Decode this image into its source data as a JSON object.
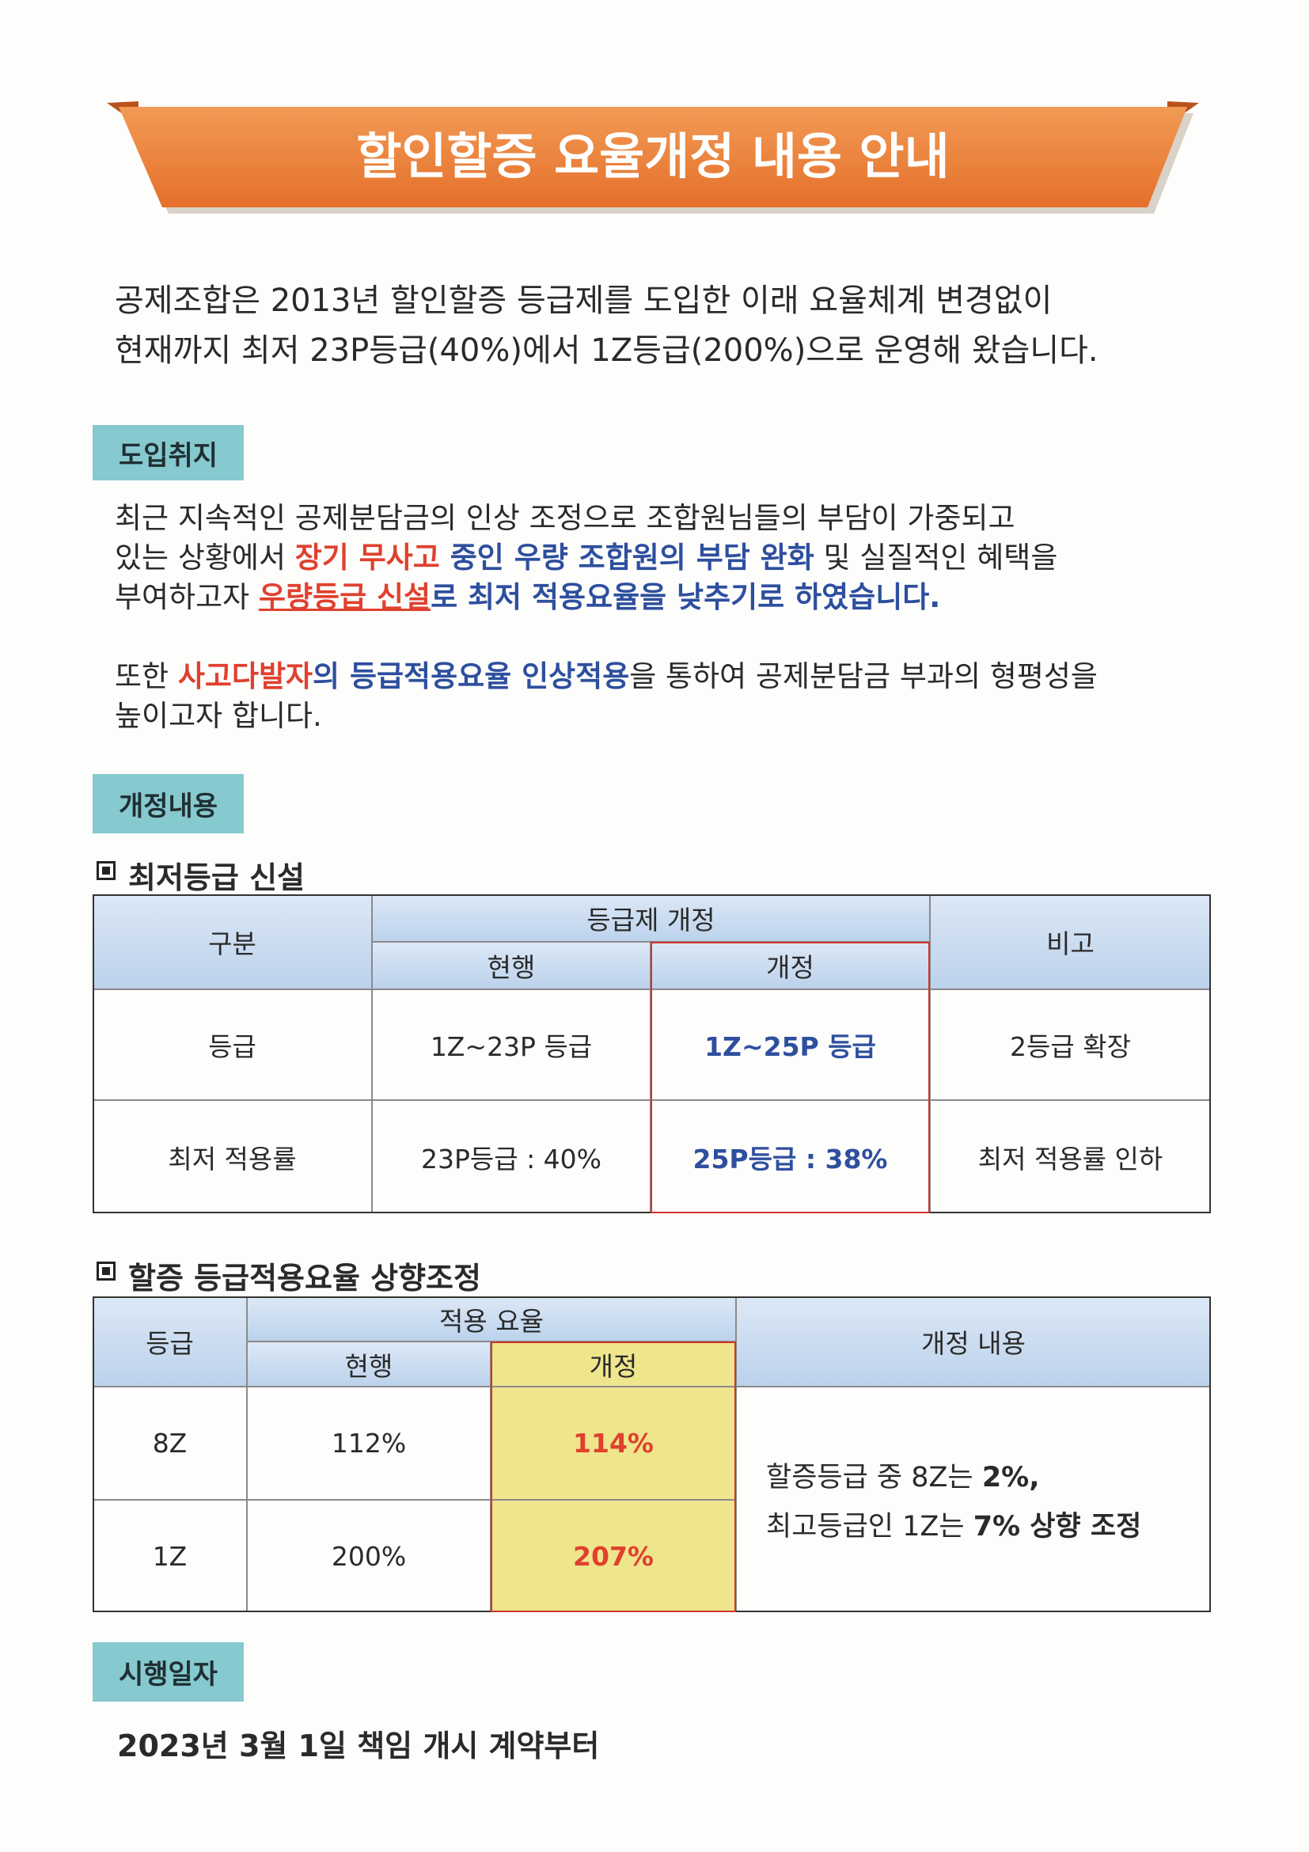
{
  "header": {
    "title": "할인할증 요율개정 내용 안내"
  },
  "intro": {
    "lines": [
      "공제조합은 2013년 할인할증 등급제를 도입한 이래 요율체계 변경없이",
      "현재까지 최저 23P등급(40%)에서 1Z등급(200%)으로 운영해 왔습니다."
    ]
  },
  "purpose": {
    "label": "도입취지",
    "paragraph1": [
      [
        {
          "text": "최근 지속적인 공제분담금의 인상 조정으로 조합원님들의 부담이 가중되고",
          "style": "plain"
        }
      ],
      [
        {
          "text": "있는 상황에서 ",
          "style": "plain"
        },
        {
          "text": "장기 무사고",
          "style": "red"
        },
        {
          "text": " 중인 우량 조합원의 부담 완화",
          "style": "blue"
        },
        {
          "text": " 및 실질적인 혜택을",
          "style": "plain"
        }
      ],
      [
        {
          "text": "부여하고자 ",
          "style": "plain"
        },
        {
          "text": "우량등급 신설",
          "style": "red-underline"
        },
        {
          "text": "로 최저 적용요율을 낮추기로 하였습니다.",
          "style": "blue"
        }
      ]
    ],
    "paragraph2": [
      [
        {
          "text": "또한 ",
          "style": "plain"
        },
        {
          "text": "사고다발자",
          "style": "red"
        },
        {
          "text": "의 등급적용요율 인상적용",
          "style": "blue"
        },
        {
          "text": "을 통하여 공제분담금 부과의 형평성을",
          "style": "plain"
        }
      ],
      [
        {
          "text": "높이고자 합니다.",
          "style": "plain"
        }
      ]
    ]
  },
  "revision": {
    "label": "개정내용",
    "table1": {
      "title": "최저등급 신설",
      "header": {
        "category": "구분",
        "group": "등급제 개정",
        "current": "현행",
        "revised": "개정",
        "note": "비고"
      },
      "rows": [
        [
          "등급",
          "1Z~23P 등급",
          "1Z~25P 등급",
          "2등급 확장"
        ],
        [
          "최저 적용률",
          "23P등급 : 40%",
          "25P등급 : 38%",
          "최저 적용률 인하"
        ]
      ]
    },
    "table2": {
      "title": "할증 등급적용요율 상향조정",
      "header": {
        "grade": "등급",
        "group": "적용 요율",
        "current": "현행",
        "revised": "개정",
        "content": "개정 내용"
      },
      "rows": [
        [
          "8Z",
          "112%",
          "114%"
        ],
        [
          "1Z",
          "200%",
          "207%"
        ]
      ],
      "content_lines": [
        [
          {
            "text": "할증등급 중 8Z는 ",
            "style": "plain"
          },
          {
            "text": "2%,",
            "style": "bold"
          }
        ],
        [
          {
            "text": "최고등급인 1Z는 ",
            "style": "plain"
          },
          {
            "text": "7% 상향 조정",
            "style": "bold"
          }
        ]
      ]
    }
  },
  "effective": {
    "label": "시행일자",
    "text": "2023년 3월 1일 책임 개시 계약부터"
  }
}
